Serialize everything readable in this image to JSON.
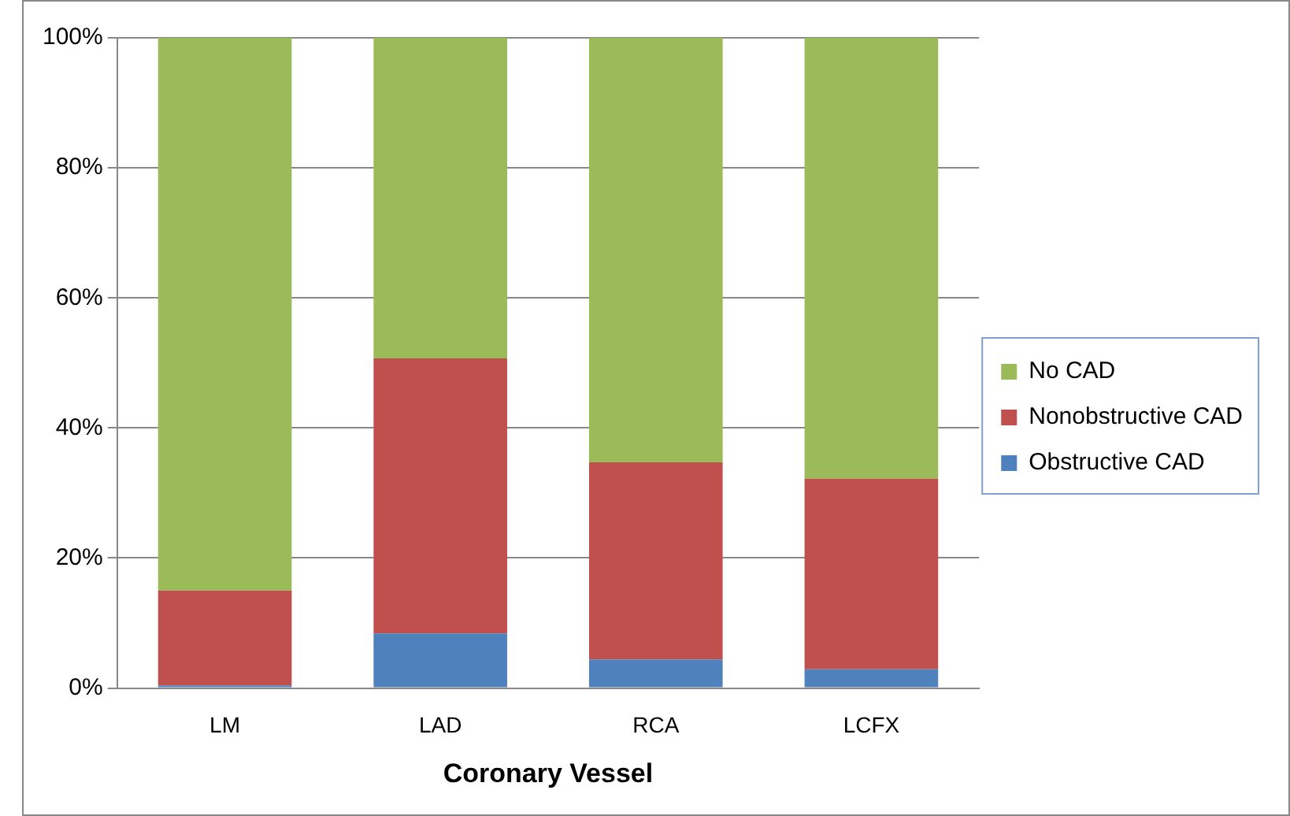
{
  "chart_data": {
    "type": "bar",
    "xlabel": "Coronary Vessel",
    "categories": [
      "LM",
      "LAD",
      "RCA",
      "LCFX"
    ],
    "stacked": true,
    "series": [
      {
        "name": "Obstructive CAD",
        "color": "#4f81bd",
        "values": [
          0.4,
          8.4,
          4.4,
          2.9
        ]
      },
      {
        "name": "Nonobstructive CAD",
        "color": "#c0504d",
        "values": [
          14.6,
          42.3,
          30.3,
          29.3
        ]
      },
      {
        "name": "No CAD",
        "color": "#9bbb59",
        "values": [
          85,
          49.3,
          65.3,
          67.8
        ]
      }
    ],
    "ylim": [
      0,
      100
    ],
    "yticks": [
      {
        "value": 0,
        "label": "0%"
      },
      {
        "value": 20,
        "label": "20%"
      },
      {
        "value": 40,
        "label": "40%"
      },
      {
        "value": 60,
        "label": "60%"
      },
      {
        "value": 80,
        "label": "80%"
      },
      {
        "value": 100,
        "label": "100%"
      }
    ],
    "grid": "y",
    "legend": "right"
  }
}
